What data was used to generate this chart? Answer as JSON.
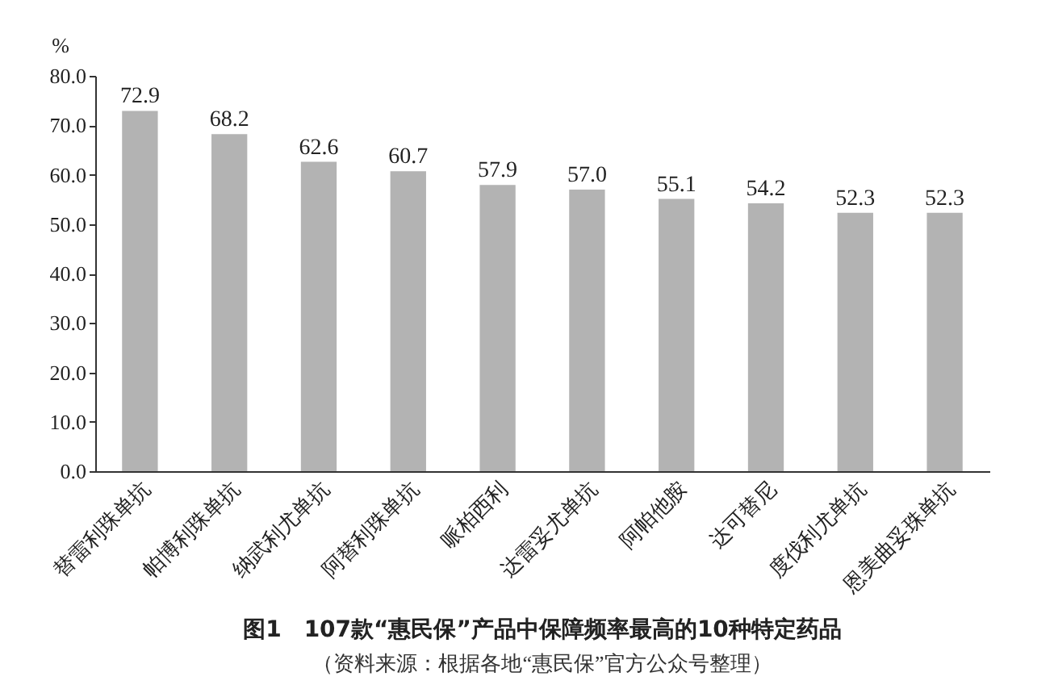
{
  "chart_data": {
    "type": "bar",
    "title": "图1　107款“惠民保”产品中保障频率最高的10种特定药品",
    "ylabel": "%",
    "categories": [
      "替雷利珠单抗",
      "帕博利珠单抗",
      "纳武利尤单抗",
      "阿替利珠单抗",
      "哌柏西利",
      "达雷妥尤单抗",
      "阿帕他胺",
      "达可替尼",
      "度伐利尤单抗",
      "恩美曲妥珠单抗"
    ],
    "values": [
      72.9,
      68.2,
      62.6,
      60.7,
      57.9,
      57.0,
      55.1,
      54.2,
      52.3,
      52.3
    ],
    "color": "#b3b3b3",
    "ylim": [
      0,
      80
    ],
    "yticks": [
      {
        "value": 0,
        "label": "0.0"
      },
      {
        "value": 10,
        "label": "10.0"
      },
      {
        "value": 20,
        "label": "20.0"
      },
      {
        "value": 30,
        "label": "30.0"
      },
      {
        "value": 40,
        "label": "40.0"
      },
      {
        "value": 50,
        "label": "50.0"
      },
      {
        "value": 60,
        "label": "60.0"
      },
      {
        "value": 70,
        "label": "70.0"
      },
      {
        "value": 80,
        "label": "80.0"
      }
    ],
    "value_labels": [
      "72.9",
      "68.2",
      "62.6",
      "60.7",
      "57.9",
      "57.0",
      "55.1",
      "54.2",
      "52.3",
      "52.3"
    ],
    "grid": false,
    "annotations": [
      "（资料来源：根据各地“惠民保”官方公众号整理）"
    ]
  }
}
